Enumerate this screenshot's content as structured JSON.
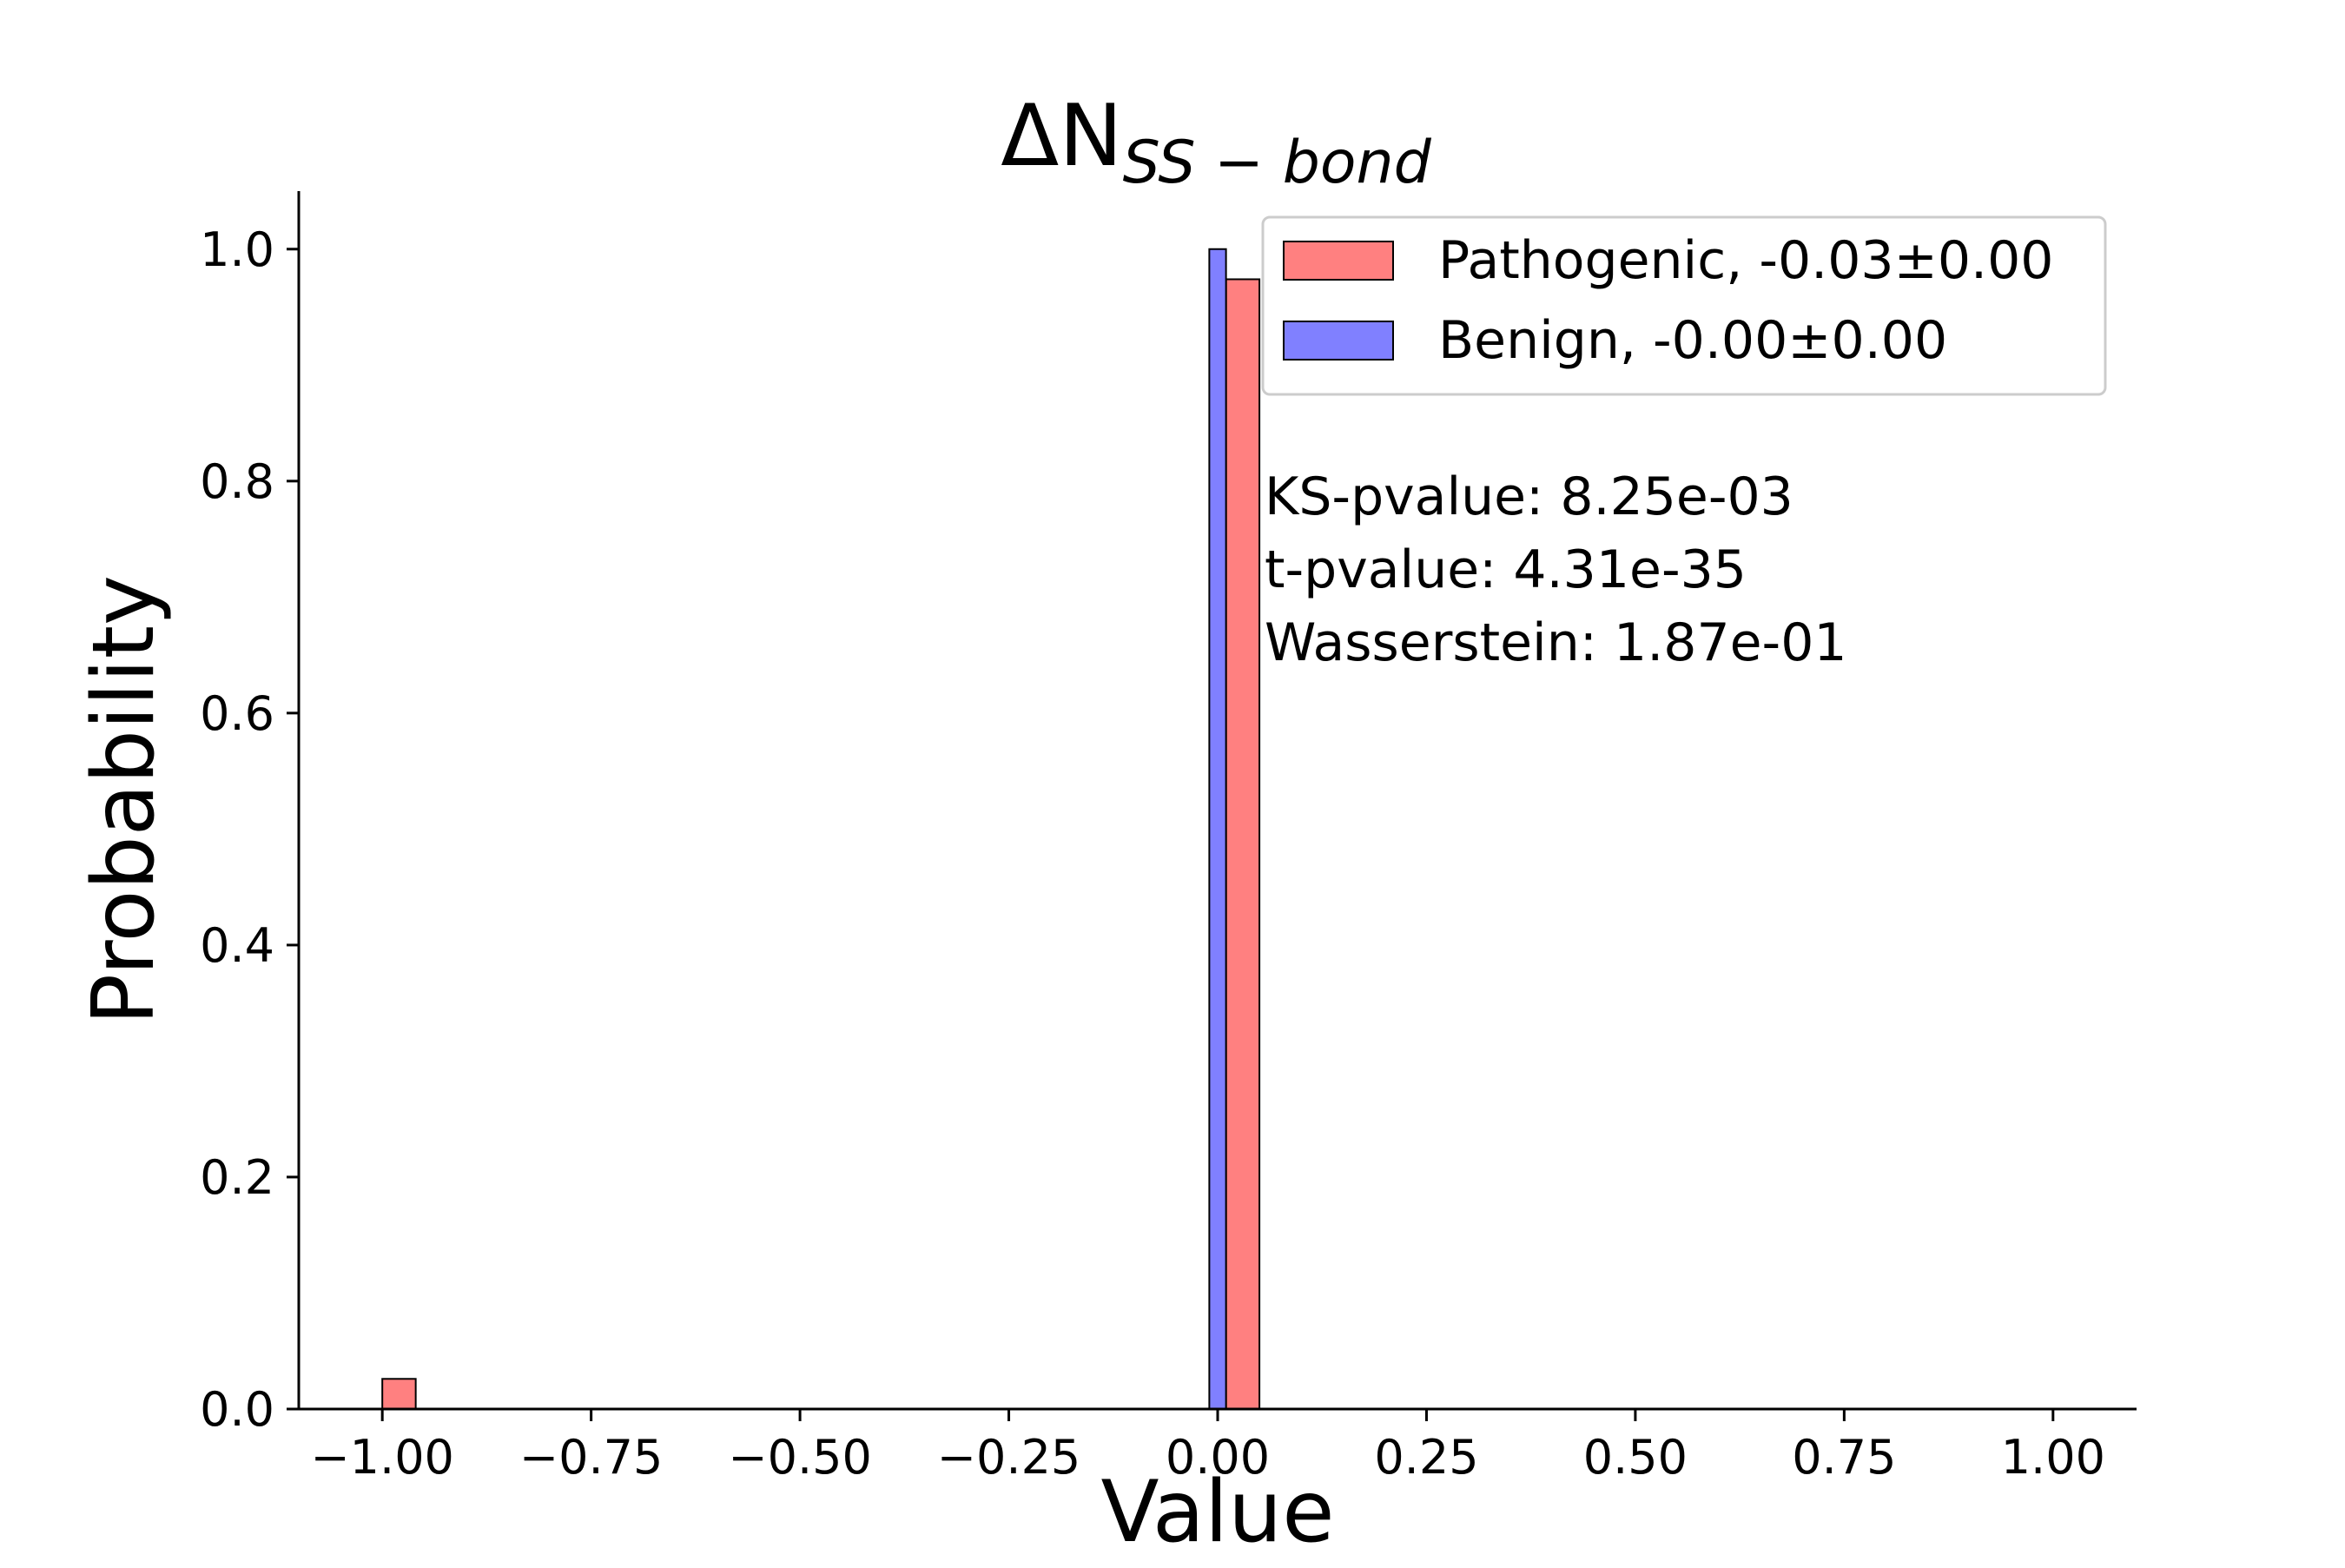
{
  "chart_data": {
    "type": "bar",
    "title": {
      "main": "ΔN",
      "subscript": "SS − bond"
    },
    "xlabel": "Value",
    "ylabel": "Probability",
    "xlim": [
      -1.1,
      1.1
    ],
    "ylim": [
      0,
      1.05
    ],
    "xticks": [
      -1.0,
      -0.75,
      -0.5,
      -0.25,
      0.0,
      0.25,
      0.5,
      0.75,
      1.0
    ],
    "xtick_labels": [
      "−1.00",
      "−0.75",
      "−0.50",
      "−0.25",
      "0.00",
      "0.25",
      "0.50",
      "0.75",
      "1.00"
    ],
    "yticks": [
      0.0,
      0.2,
      0.4,
      0.6,
      0.8,
      1.0
    ],
    "ytick_labels": [
      "0.0",
      "0.2",
      "0.4",
      "0.6",
      "0.8",
      "1.0"
    ],
    "grid": false,
    "legend_position": "top-right",
    "series": [
      {
        "name": "Pathogenic, -0.03±0.00",
        "color": "#ff8080",
        "bars": [
          {
            "x0": -1.0,
            "x1": -0.96,
            "y": 0.026
          },
          {
            "x0": 0.01,
            "x1": 0.05,
            "y": 0.974
          }
        ]
      },
      {
        "name": "Benign, -0.00±0.00",
        "color": "#8080ff",
        "bars": [
          {
            "x0": -0.01,
            "x1": 0.01,
            "y": 1.0
          }
        ]
      }
    ],
    "annotations": [
      "KS-pvalue: 8.25e-03",
      "t-pvalue: 4.31e-35",
      "Wasserstein: 1.87e-01"
    ]
  }
}
